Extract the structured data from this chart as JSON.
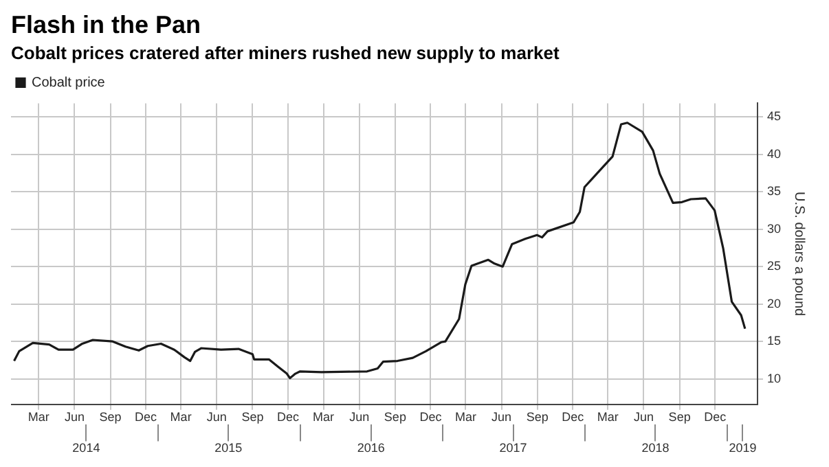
{
  "chart_data": {
    "type": "line",
    "title": "Flash in the Pan",
    "subtitle": "Cobalt prices cratered after miners rushed new supply to market",
    "ylabel": "U.S. dollars a pound",
    "legend": "top left",
    "grid": true,
    "marker": "none",
    "line_style": "solid",
    "xlim": [
      "2013-12-20",
      "2019-03-20"
    ],
    "xticks": [
      {
        "value": "2014-03",
        "label": "Mar"
      },
      {
        "value": "2014-06",
        "label": "Jun"
      },
      {
        "value": "2014-09",
        "label": "Sep"
      },
      {
        "value": "2014-12",
        "label": "Dec"
      },
      {
        "value": "2015-03",
        "label": "Mar"
      },
      {
        "value": "2015-06",
        "label": "Jun"
      },
      {
        "value": "2015-09",
        "label": "Sep"
      },
      {
        "value": "2015-12",
        "label": "Dec"
      },
      {
        "value": "2016-03",
        "label": "Mar"
      },
      {
        "value": "2016-06",
        "label": "Jun"
      },
      {
        "value": "2016-09",
        "label": "Sep"
      },
      {
        "value": "2016-12",
        "label": "Dec"
      },
      {
        "value": "2017-03",
        "label": "Mar"
      },
      {
        "value": "2017-06",
        "label": "Jun"
      },
      {
        "value": "2017-09",
        "label": "Sep"
      },
      {
        "value": "2017-12",
        "label": "Dec"
      },
      {
        "value": "2018-03",
        "label": "Mar"
      },
      {
        "value": "2018-06",
        "label": "Jun"
      },
      {
        "value": "2018-09",
        "label": "Sep"
      },
      {
        "value": "2018-12",
        "label": "Dec"
      }
    ],
    "x2lim": [
      "2013-12-20",
      "2019-03-20"
    ],
    "x2ticks": [
      {
        "value": "2014-07-01",
        "label": "2014"
      },
      {
        "value": "2015-01-01",
        "label": null
      },
      {
        "value": "2015-07-01",
        "label": "2015"
      },
      {
        "value": "2016-01-01",
        "label": null
      },
      {
        "value": "2016-07-01",
        "label": "2016"
      },
      {
        "value": "2017-01-01",
        "label": null
      },
      {
        "value": "2017-07-01",
        "label": "2017"
      },
      {
        "value": "2018-01-01",
        "label": null
      },
      {
        "value": "2018-07-01",
        "label": "2018"
      },
      {
        "value": "2019-01-01",
        "label": null
      },
      {
        "value": "2019-02-10",
        "label": "2019"
      }
    ],
    "ylim": [
      6.6,
      46.8
    ],
    "yticks": [
      10,
      15,
      20,
      25,
      30,
      35,
      40,
      45
    ],
    "series": [
      {
        "name": "Cobalt price",
        "color": "#1a1a1a",
        "x": [
          "2013-12-28",
          "2014-01-10",
          "2014-02-14",
          "2014-03-28",
          "2014-04-21",
          "2014-05-28",
          "2014-06-21",
          "2014-07-18",
          "2014-09-07",
          "2014-10-10",
          "2014-11-13",
          "2014-12-06",
          "2015-01-09",
          "2015-02-12",
          "2015-03-10",
          "2015-03-25",
          "2015-04-06",
          "2015-04-22",
          "2015-06-12",
          "2015-07-27",
          "2015-09-01",
          "2015-09-05",
          "2015-10-13",
          "2015-11-06",
          "2015-11-28",
          "2015-12-06",
          "2015-12-20",
          "2016-01-01",
          "2016-02-25",
          "2016-06-21",
          "2016-07-18",
          "2016-08-01",
          "2016-09-07",
          "2016-10-16",
          "2016-11-19",
          "2016-12-28",
          "2017-01-08",
          "2017-02-12",
          "2017-02-28",
          "2017-03-16",
          "2017-04-28",
          "2017-05-14",
          "2017-06-04",
          "2017-06-28",
          "2017-08-01",
          "2017-08-31",
          "2017-09-13",
          "2017-09-27",
          "2017-12-03",
          "2017-12-19",
          "2017-12-31",
          "2018-01-28",
          "2018-03-13",
          "2018-04-04",
          "2018-04-20",
          "2018-05-28",
          "2018-06-25",
          "2018-07-12",
          "2018-08-15",
          "2018-09-07",
          "2018-09-30",
          "2018-11-07",
          "2018-11-30",
          "2018-12-22",
          "2019-01-13",
          "2019-02-06",
          "2019-02-16"
        ],
        "values": [
          12.4,
          13.7,
          14.8,
          14.6,
          13.9,
          13.9,
          14.7,
          15.2,
          15.0,
          14.3,
          13.8,
          14.4,
          14.7,
          13.9,
          12.9,
          12.4,
          13.6,
          14.1,
          13.9,
          14.0,
          13.3,
          12.6,
          12.6,
          11.6,
          10.7,
          10.1,
          10.7,
          11.0,
          10.9,
          11.0,
          11.4,
          12.3,
          12.4,
          12.8,
          13.7,
          14.9,
          15.0,
          18.0,
          22.6,
          25.1,
          25.9,
          25.4,
          25.0,
          28.0,
          28.7,
          29.2,
          28.9,
          29.7,
          30.9,
          32.3,
          35.6,
          37.2,
          39.7,
          44.0,
          44.2,
          43.0,
          40.5,
          37.4,
          33.5,
          33.6,
          34.0,
          34.1,
          32.5,
          27.4,
          20.3,
          18.5,
          16.7
        ]
      }
    ]
  }
}
